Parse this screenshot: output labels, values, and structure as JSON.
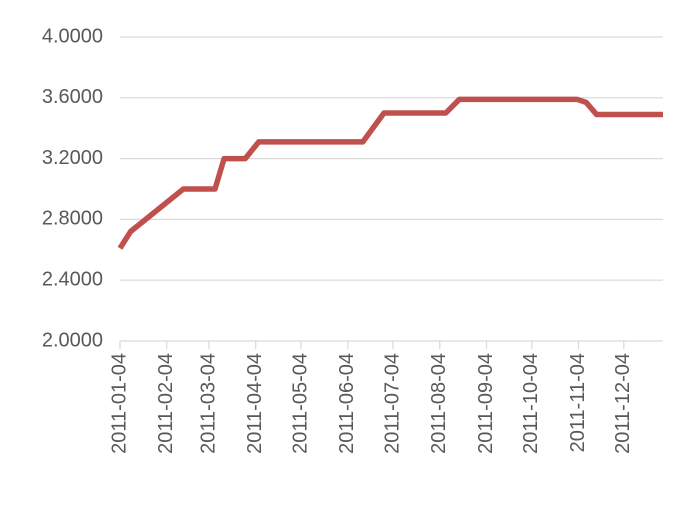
{
  "chart_data": {
    "type": "line",
    "x": [
      "2011-01-04",
      "2011-01-11",
      "2011-02-15",
      "2011-03-08",
      "2011-03-14",
      "2011-03-28",
      "2011-04-06",
      "2011-06-14",
      "2011-06-28",
      "2011-08-08",
      "2011-08-17",
      "2011-11-03",
      "2011-11-09",
      "2011-11-16",
      "2011-12-30"
    ],
    "series": [
      {
        "color": "#c0504d",
        "values": [
          2.61,
          2.72,
          3.0,
          3.0,
          3.2,
          3.2,
          3.31,
          3.31,
          3.5,
          3.5,
          3.59,
          3.59,
          3.57,
          3.49,
          3.49
        ]
      }
    ],
    "xlim": [
      "2011-01-04",
      "2011-12-30"
    ],
    "xticks": [
      "2011-01-04",
      "2011-02-04",
      "2011-03-04",
      "2011-04-04",
      "2011-05-04",
      "2011-06-04",
      "2011-07-04",
      "2011-08-04",
      "2011-09-04",
      "2011-10-04",
      "2011-11-04",
      "2011-12-04"
    ],
    "ylim": [
      2.0,
      4.0
    ],
    "yticks": [
      {
        "value": 2.0,
        "label": "2.0000"
      },
      {
        "value": 2.4,
        "label": "2.4000"
      },
      {
        "value": 2.8,
        "label": "2.8000"
      },
      {
        "value": 3.2,
        "label": "3.2000"
      },
      {
        "value": 3.6,
        "label": "3.6000"
      },
      {
        "value": 4.0,
        "label": "4.0000"
      }
    ],
    "grid": true
  }
}
